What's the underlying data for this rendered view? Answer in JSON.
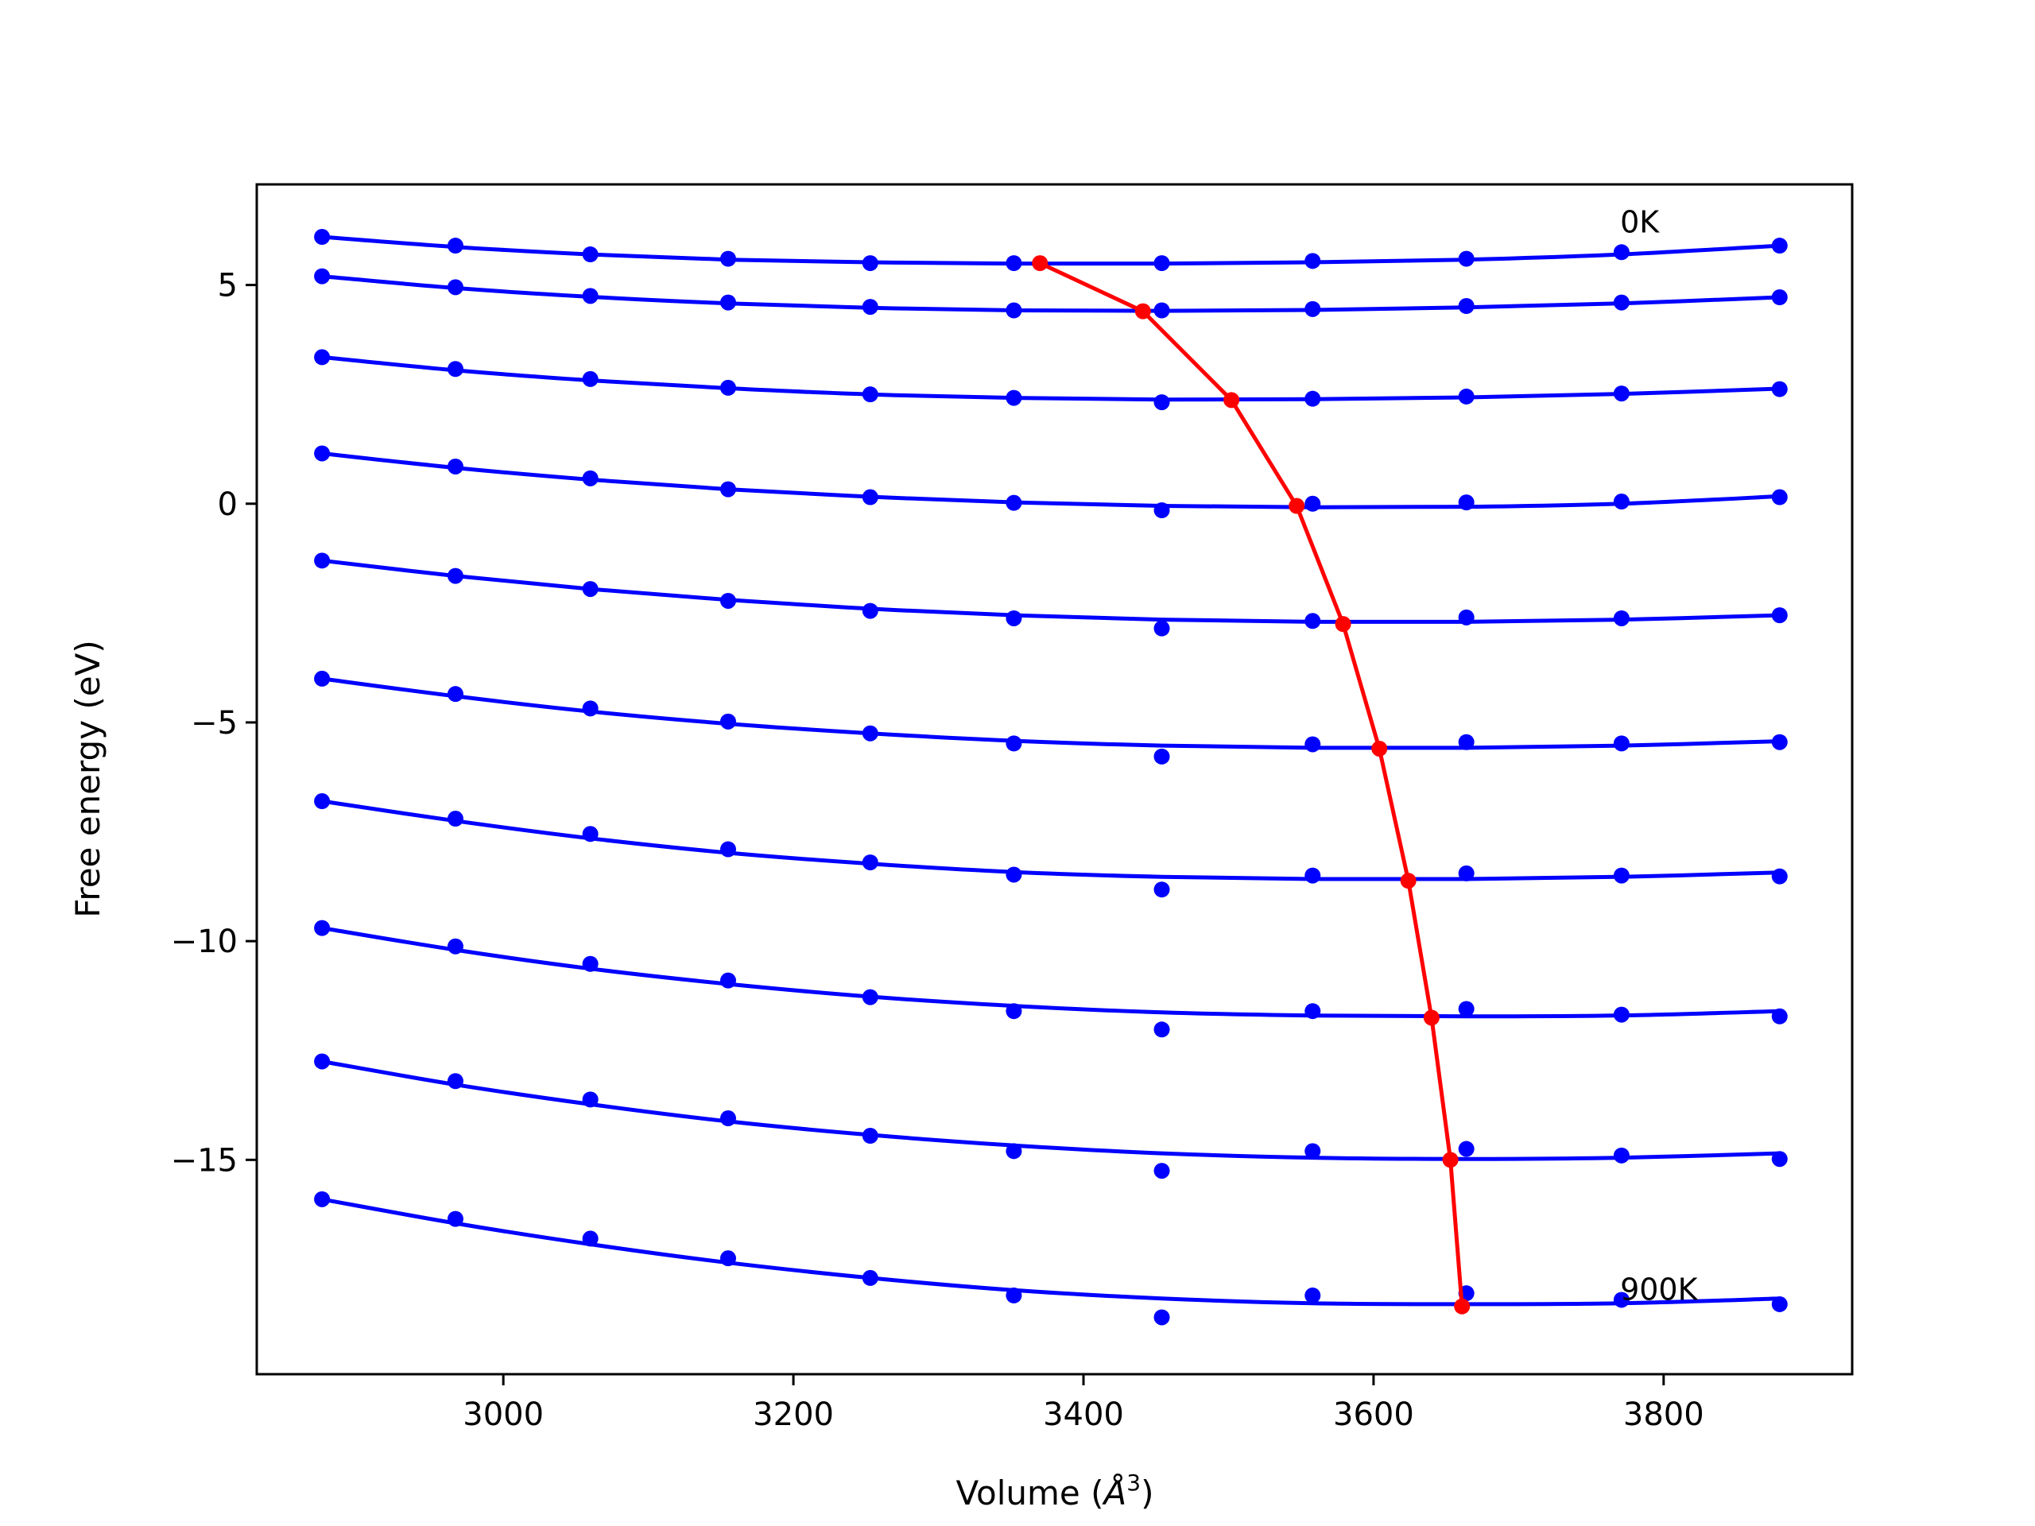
{
  "chart_data": {
    "type": "line",
    "xlabel": "Volume (",
    "xlabel_unit": "Å",
    "xlabel_sup": "3",
    "xlabel_end": ")",
    "ylabel": "Free energy (eV)",
    "xlim": [
      2830,
      3930
    ],
    "ylim": [
      -19.9,
      7.3
    ],
    "xticks": [
      3000,
      3200,
      3400,
      3600,
      3800
    ],
    "xtick_labels": [
      "3000",
      "3200",
      "3400",
      "3600",
      "3800"
    ],
    "yticks": [
      5,
      0,
      -5,
      -10,
      -15
    ],
    "ytick_labels": [
      "5",
      "0",
      "−5",
      "−10",
      "−15"
    ],
    "annotations": [
      {
        "text": "0K",
        "x": 3770,
        "y": 6.2
      },
      {
        "text": "900K",
        "x": 3770,
        "y": -18.2
      }
    ],
    "colors": {
      "points": "#0000ff",
      "fits": "#0000ff",
      "minima": "#ff0000"
    },
    "volumes": [
      2875,
      2967,
      3060,
      3155,
      3253,
      3352,
      3454,
      3558,
      3664,
      3771,
      3880
    ],
    "series": [
      {
        "values": [
          6.1,
          5.9,
          5.7,
          5.6,
          5.5,
          5.5,
          5.5,
          5.55,
          5.6,
          5.75,
          5.9
        ],
        "fit": [
          6.1,
          5.87,
          5.7,
          5.58,
          5.52,
          5.49,
          5.49,
          5.52,
          5.58,
          5.7,
          5.9
        ]
      },
      {
        "values": [
          5.2,
          4.95,
          4.75,
          4.6,
          4.5,
          4.42,
          4.42,
          4.45,
          4.52,
          4.6,
          4.72
        ],
        "fit": [
          5.2,
          4.93,
          4.73,
          4.58,
          4.48,
          4.42,
          4.41,
          4.43,
          4.49,
          4.58,
          4.72
        ]
      },
      {
        "values": [
          3.35,
          3.08,
          2.85,
          2.65,
          2.5,
          2.42,
          2.32,
          2.4,
          2.45,
          2.52,
          2.62
        ],
        "fit": [
          3.35,
          3.05,
          2.82,
          2.64,
          2.5,
          2.42,
          2.38,
          2.39,
          2.43,
          2.51,
          2.63
        ]
      },
      {
        "values": [
          1.15,
          0.85,
          0.58,
          0.33,
          0.15,
          0.02,
          -0.15,
          0.0,
          0.03,
          0.05,
          0.15
        ],
        "fit": [
          1.15,
          0.82,
          0.55,
          0.33,
          0.16,
          0.03,
          -0.05,
          -0.08,
          -0.07,
          0.0,
          0.17
        ]
      },
      {
        "values": [
          -1.3,
          -1.65,
          -1.95,
          -2.22,
          -2.45,
          -2.62,
          -2.85,
          -2.68,
          -2.6,
          -2.62,
          -2.55
        ],
        "fit": [
          -1.3,
          -1.65,
          -1.95,
          -2.2,
          -2.4,
          -2.55,
          -2.65,
          -2.7,
          -2.7,
          -2.65,
          -2.55
        ]
      },
      {
        "values": [
          -4.0,
          -4.35,
          -4.68,
          -4.98,
          -5.25,
          -5.48,
          -5.78,
          -5.5,
          -5.45,
          -5.48,
          -5.45
        ],
        "fit": [
          -4.0,
          -4.4,
          -4.75,
          -5.03,
          -5.25,
          -5.42,
          -5.53,
          -5.58,
          -5.58,
          -5.53,
          -5.43
        ]
      },
      {
        "values": [
          -6.8,
          -7.2,
          -7.55,
          -7.9,
          -8.2,
          -8.48,
          -8.82,
          -8.5,
          -8.45,
          -8.5,
          -8.52
        ],
        "fit": [
          -6.8,
          -7.25,
          -7.65,
          -7.98,
          -8.23,
          -8.42,
          -8.53,
          -8.58,
          -8.58,
          -8.53,
          -8.43
        ]
      },
      {
        "values": [
          -9.7,
          -10.12,
          -10.52,
          -10.9,
          -11.28,
          -11.6,
          -12.02,
          -11.6,
          -11.55,
          -11.68,
          -11.72
        ],
        "fit": [
          -9.7,
          -10.2,
          -10.63,
          -10.98,
          -11.27,
          -11.48,
          -11.63,
          -11.7,
          -11.72,
          -11.7,
          -11.6
        ]
      },
      {
        "values": [
          -12.75,
          -13.2,
          -13.62,
          -14.05,
          -14.45,
          -14.8,
          -15.25,
          -14.8,
          -14.75,
          -14.9,
          -14.98
        ],
        "fit": [
          -12.75,
          -13.28,
          -13.73,
          -14.12,
          -14.43,
          -14.67,
          -14.85,
          -14.95,
          -14.98,
          -14.95,
          -14.85
        ]
      },
      {
        "values": [
          -15.9,
          -16.35,
          -16.8,
          -17.25,
          -17.7,
          -18.1,
          -18.6,
          -18.1,
          -18.05,
          -18.2,
          -18.3
        ],
        "fit": [
          -15.9,
          -16.45,
          -16.93,
          -17.35,
          -17.7,
          -17.98,
          -18.17,
          -18.28,
          -18.3,
          -18.28,
          -18.17
        ]
      }
    ],
    "minima": {
      "x": [
        3370,
        3441,
        3502,
        3547,
        3579,
        3604,
        3624,
        3640,
        3653,
        3661
      ],
      "y": [
        5.5,
        4.4,
        2.37,
        -0.05,
        -2.75,
        -5.6,
        -8.62,
        -11.75,
        -15.0,
        -18.35
      ]
    }
  }
}
